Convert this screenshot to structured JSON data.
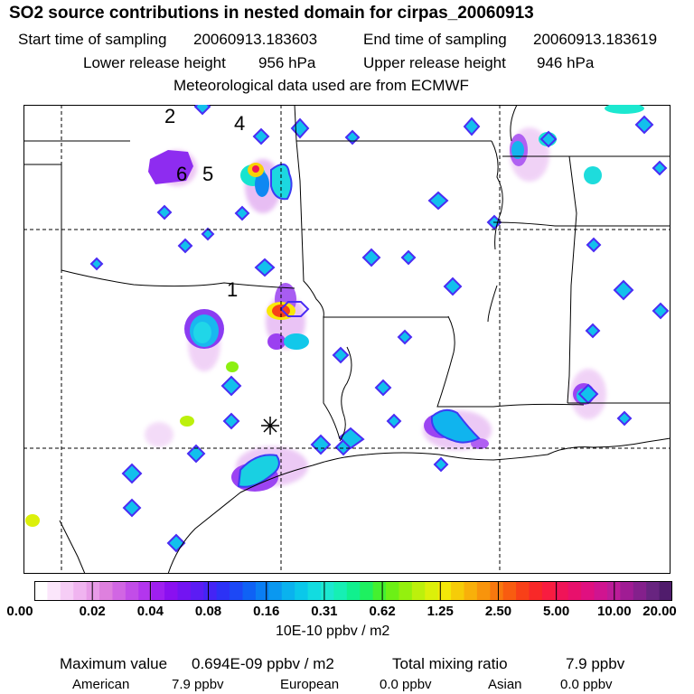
{
  "header": {
    "title": "SO2 source contributions in nested domain for cirpas_20060913",
    "start_label": "Start time of sampling",
    "start_value": "20060913.183603",
    "end_label": "End time of sampling",
    "end_value": "20060913.183619",
    "lower_label": "Lower release height",
    "lower_value": "956 hPa",
    "upper_label": "Upper release height",
    "upper_value": "946 hPa",
    "met_text": "Meteorological data used are from ECMWF"
  },
  "map": {
    "point_labels": [
      "1",
      "2",
      "4",
      "5",
      "6"
    ],
    "receptor_marker": "asterisk"
  },
  "colorbar": {
    "tick_labels": [
      "0.00",
      "0.02",
      "0.04",
      "0.08",
      "0.16",
      "0.31",
      "0.62",
      "1.25",
      "2.50",
      "5.00",
      "10.00",
      "20.00"
    ],
    "colors": [
      "#ffffff",
      "#fbe6fb",
      "#f6cdf6",
      "#f0b4f0",
      "#e89be8",
      "#de80de",
      "#d166e3",
      "#c24de8",
      "#b336ee",
      "#9f1ff0",
      "#8a10f0",
      "#7314f2",
      "#5c1cf4",
      "#4424f5",
      "#2c32f6",
      "#1c48f6",
      "#0f62f5",
      "#0a7ef3",
      "#0a98f0",
      "#0ab2ee",
      "#0ac8ea",
      "#12dce0",
      "#1ce8d0",
      "#16efb4",
      "#10f08e",
      "#1ef060",
      "#44f030",
      "#6cf016",
      "#94f00e",
      "#bcf00c",
      "#dcf00a",
      "#f4e808",
      "#f6cc08",
      "#f8b00a",
      "#f8940c",
      "#f8780e",
      "#f85c10",
      "#f84018",
      "#f82828",
      "#f81c40",
      "#f01458",
      "#e8106c",
      "#e01080",
      "#d01490",
      "#bc1c98",
      "#a01c94",
      "#84208c",
      "#682480",
      "#501c6c"
    ],
    "unit": "10E-10 ppbv / m2"
  },
  "footer": {
    "max_label": "Maximum value",
    "max_value": "0.694E-09 ppbv / m2",
    "total_label": "Total mixing ratio",
    "total_value": "7.9 ppbv",
    "american_label": "American",
    "american_value": "7.9 ppbv",
    "european_label": "European",
    "european_value": "0.0 ppbv",
    "asian_label": "Asian",
    "asian_value": "0.0 ppbv"
  }
}
